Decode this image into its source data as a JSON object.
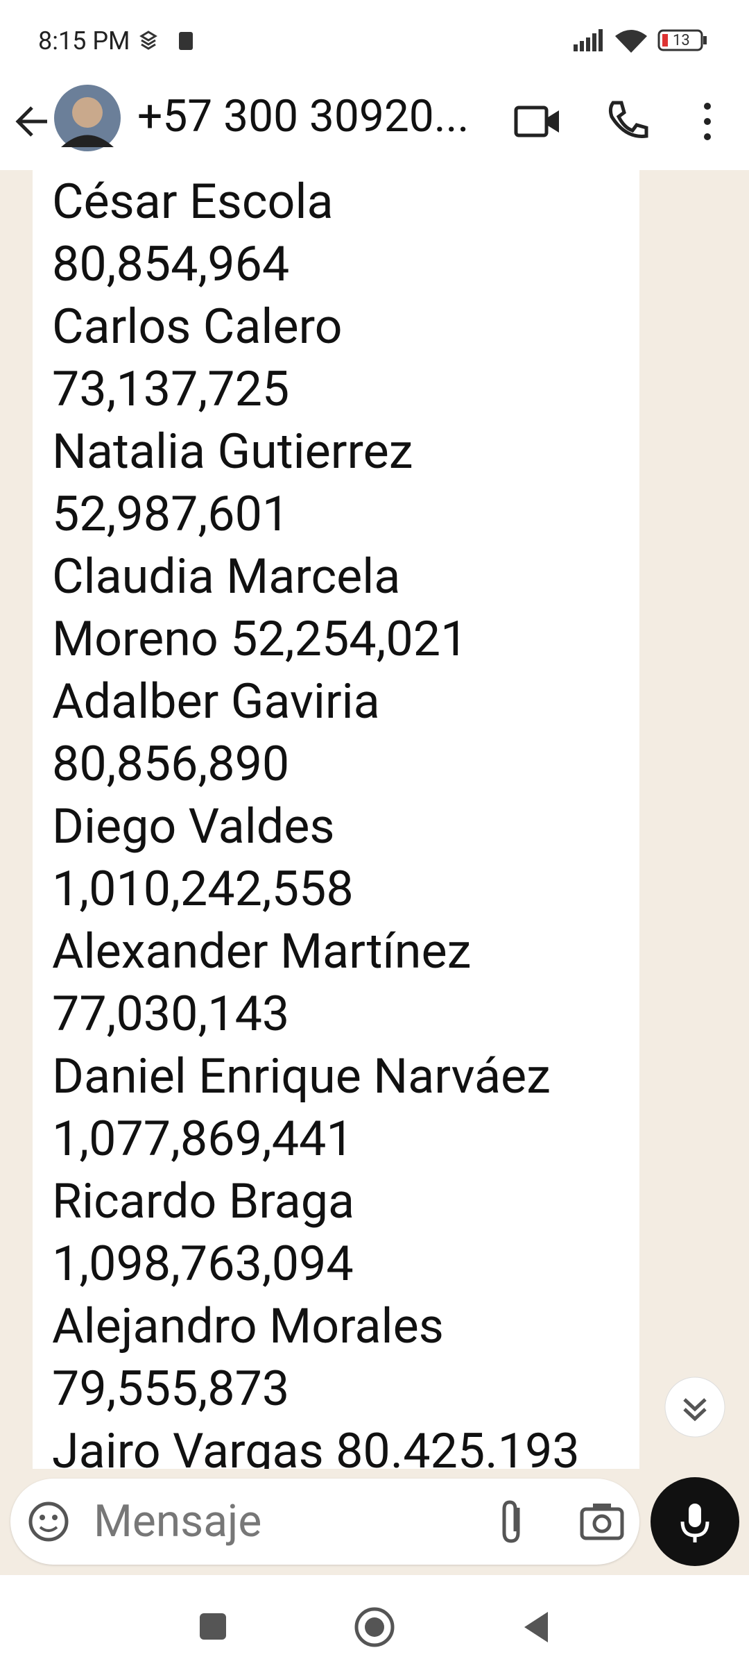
{
  "status_bar": {
    "time": "8:15 PM",
    "battery": "13"
  },
  "header": {
    "contact": "+57 300 30920..."
  },
  "message": {
    "lines": [
      "César Escola",
      "80,854,964",
      "Carlos Calero",
      "73,137,725",
      "Natalia Gutierrez",
      "52,987,601",
      "Claudia Marcela",
      "Moreno 52,254,021",
      "Adalber Gaviria",
      "80,856,890",
      "Diego Valdes",
      "1,010,242,558",
      "Alexander Martínez",
      "77,030,143",
      "Daniel Enrique Narváez",
      "1,077,869,441",
      "Ricardo Braga",
      "1,098,763,094",
      "Alejandro Morales",
      "79,555,873",
      "Jairo Vargas 80.425.193"
    ]
  },
  "input": {
    "placeholder": "Mensaje"
  }
}
